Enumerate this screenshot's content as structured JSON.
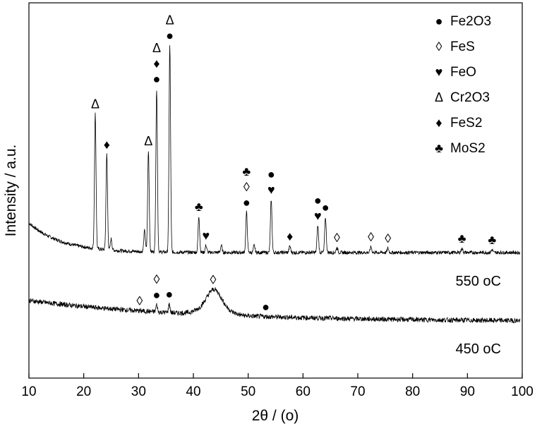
{
  "chart_data": {
    "type": "line",
    "xlabel": "2θ / (o)",
    "ylabel": "Intensity / a.u.",
    "xlim": [
      10,
      100
    ],
    "xticks": [
      "10",
      "20",
      "30",
      "40",
      "50",
      "60",
      "70",
      "80",
      "90",
      "100"
    ],
    "yticks_shown": false,
    "grid": false,
    "legend_position": "top-right",
    "legend": [
      {
        "symbol": "●",
        "label": "Fe2O3"
      },
      {
        "symbol": "◊",
        "label": "FeS"
      },
      {
        "symbol": "♥",
        "label": "FeO"
      },
      {
        "symbol": "Δ",
        "label": "Cr2O3"
      },
      {
        "symbol": "♦",
        "label": "FeS2"
      },
      {
        "symbol": "♣",
        "label": "MoS2"
      }
    ],
    "series": [
      {
        "name": "550 oC",
        "baseline_start": 0.62,
        "baseline_end": 0.2,
        "peaks": [
          {
            "x": 22.1,
            "height": 1.91
          },
          {
            "x": 24.2,
            "height": 1.35
          },
          {
            "x": 25.0,
            "height": 0.16
          },
          {
            "x": 31.1,
            "height": 0.3
          },
          {
            "x": 31.8,
            "height": 1.43
          },
          {
            "x": 33.3,
            "height": 2.31
          },
          {
            "x": 35.7,
            "height": 2.93
          },
          {
            "x": 41.0,
            "height": 0.51
          },
          {
            "x": 42.3,
            "height": 0.1
          },
          {
            "x": 45.1,
            "height": 0.1
          },
          {
            "x": 49.7,
            "height": 0.57
          },
          {
            "x": 51.1,
            "height": 0.1
          },
          {
            "x": 54.2,
            "height": 0.75
          },
          {
            "x": 57.6,
            "height": 0.09
          },
          {
            "x": 62.7,
            "height": 0.38
          },
          {
            "x": 64.1,
            "height": 0.5
          },
          {
            "x": 66.2,
            "height": 0.07
          },
          {
            "x": 72.4,
            "height": 0.08
          },
          {
            "x": 75.5,
            "height": 0.06
          },
          {
            "x": 89.0,
            "height": 0.06
          },
          {
            "x": 94.5,
            "height": 0.04
          }
        ],
        "markers": [
          {
            "x": 22.1,
            "symbols": [
              "Δ"
            ]
          },
          {
            "x": 24.2,
            "symbols": [
              "♦"
            ]
          },
          {
            "x": 31.8,
            "symbols": [
              "Δ"
            ]
          },
          {
            "x": 33.3,
            "symbols": [
              "●",
              "♦",
              "Δ"
            ]
          },
          {
            "x": 35.7,
            "symbols": [
              "●",
              "Δ"
            ]
          },
          {
            "x": 41.0,
            "symbols": [
              "♣"
            ]
          },
          {
            "x": 42.3,
            "symbols": [
              "♥"
            ]
          },
          {
            "x": 49.7,
            "symbols": [
              "●",
              "◊",
              "♣"
            ]
          },
          {
            "x": 54.2,
            "symbols": [
              "♥",
              "●"
            ]
          },
          {
            "x": 57.6,
            "symbols": [
              "♦"
            ]
          },
          {
            "x": 62.7,
            "symbols": [
              "♥",
              "●"
            ]
          },
          {
            "x": 64.1,
            "symbols": [
              "●"
            ]
          },
          {
            "x": 66.2,
            "symbols": [
              "◊"
            ]
          },
          {
            "x": 72.4,
            "symbols": [
              "◊"
            ]
          },
          {
            "x": 75.5,
            "symbols": [
              "◊"
            ]
          },
          {
            "x": 89.0,
            "symbols": [
              "♣"
            ]
          },
          {
            "x": 94.5,
            "symbols": [
              "♣"
            ]
          }
        ]
      },
      {
        "name": "450 oC",
        "baseline_start": 0.62,
        "baseline_end": 0.2,
        "peaks": [
          {
            "x": 33.3,
            "height": 0.1
          },
          {
            "x": 35.6,
            "height": 0.12
          },
          {
            "x": 43.8,
            "height": 0.2
          }
        ],
        "markers": [
          {
            "x": 30.2,
            "symbols": [
              "◊"
            ]
          },
          {
            "x": 33.3,
            "symbols": [
              "●",
              "◊"
            ]
          },
          {
            "x": 35.6,
            "symbols": [
              "●"
            ]
          },
          {
            "x": 43.6,
            "symbols": [
              "◊"
            ]
          },
          {
            "x": 53.2,
            "symbols": [
              "●"
            ]
          }
        ]
      }
    ]
  }
}
